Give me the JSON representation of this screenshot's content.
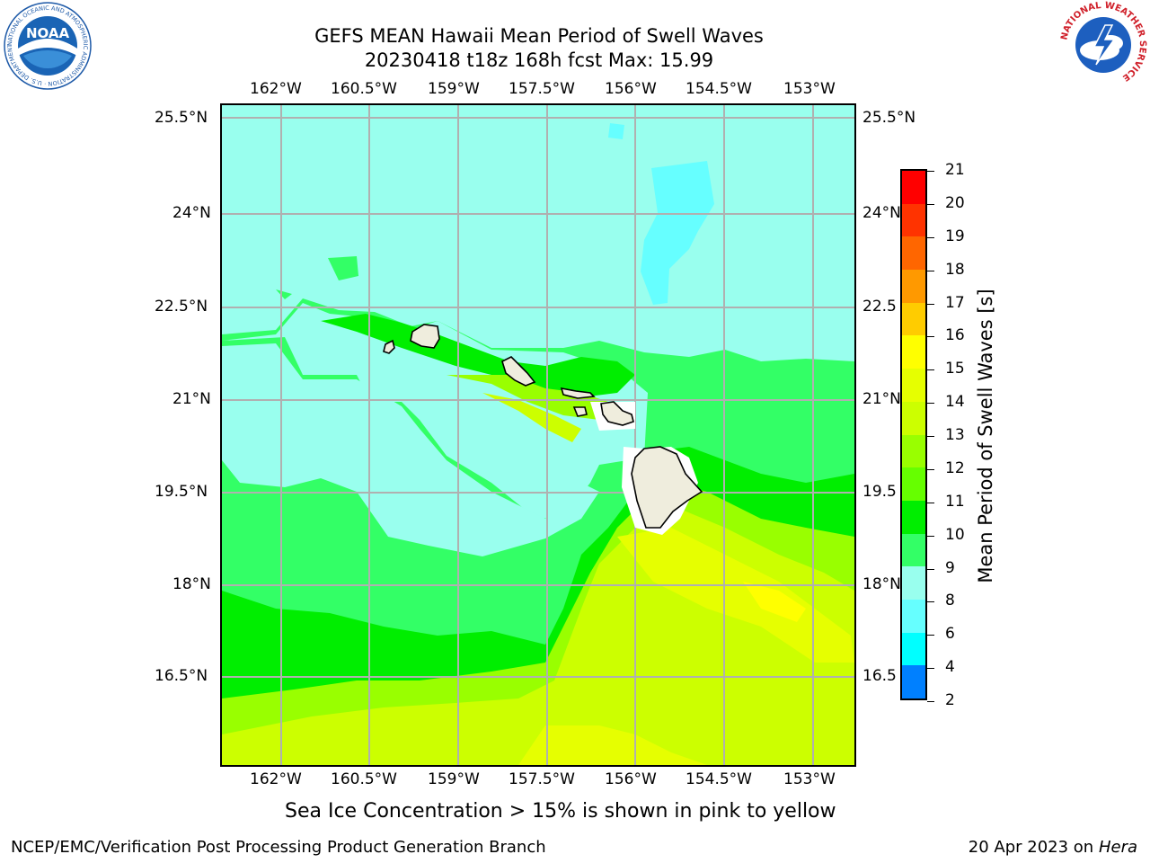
{
  "title": {
    "line1": "GEFS MEAN Hawaii Mean Period of Swell Waves",
    "line2": "20230418 t18z 168h fcst   Max: 15.99"
  },
  "map": {
    "lon_ticks": [
      "162°W",
      "160.5°W",
      "159°W",
      "157.5°W",
      "156°W",
      "154.5°W",
      "153°W"
    ],
    "lat_ticks_left": [
      "25.5°N",
      "24°N",
      "22.5°N",
      "21°N",
      "19.5°N",
      "18°N",
      "16.5°N"
    ],
    "lat_ticks_right": [
      "25.5°N",
      "24°N",
      "22.5",
      "21°N",
      "19.5",
      "18°N",
      "16.5"
    ],
    "land_color": "#efeddd",
    "grid_color": "#b0b0b0"
  },
  "colorbar": {
    "title": "Mean Period of Swell Waves [s]",
    "labels": [
      "21",
      "20",
      "19",
      "18",
      "17",
      "16",
      "15",
      "14",
      "13",
      "12",
      "11",
      "10",
      "9",
      "8",
      "6",
      "4",
      "2"
    ],
    "colors": [
      "#ff0000",
      "#ff3300",
      "#ff6600",
      "#ff9900",
      "#ffcc00",
      "#ffff00",
      "#e6ff00",
      "#ccff00",
      "#99ff00",
      "#66ff00",
      "#00ee00",
      "#33ff66",
      "#99ffee",
      "#66ffff",
      "#00ffff",
      "#0080ff",
      "#0000ff"
    ]
  },
  "caption": "Sea Ice Concentration > 15% is shown in pink to yellow",
  "footer": {
    "left": "NCEP/EMC/Verification Post Processing Product Generation Branch",
    "right_date": "20 Apr 2023 on ",
    "right_host": "Hera"
  },
  "logos": {
    "noaa_text": "NOAA",
    "noaa_ring": "NATIONAL OCEANIC AND ATMOSPHERIC ADMINISTRATION · U.S. DEPARTMENT OF COMMERCE",
    "nws_ring": "NATIONAL WEATHER SERVICE"
  }
}
